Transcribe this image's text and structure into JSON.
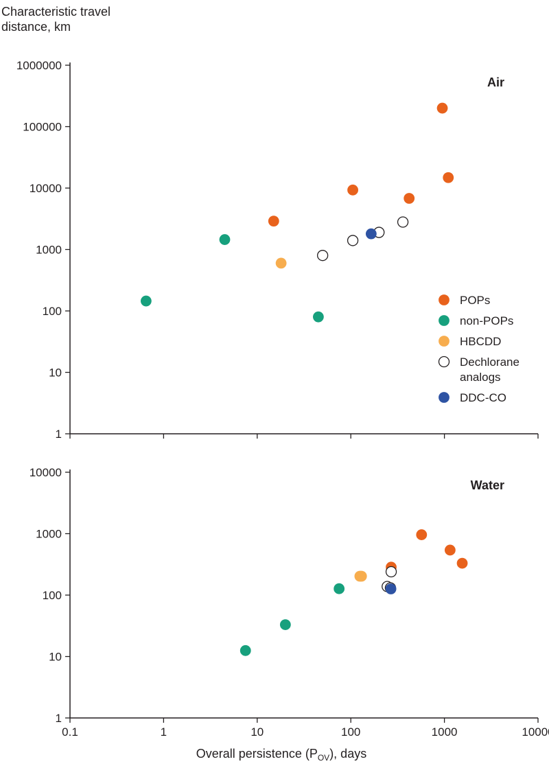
{
  "chart_data": {
    "type": "scatter",
    "ylabel_lines": [
      "Characteristic travel",
      "distance, km"
    ],
    "xlabel": "Overall persistence (P",
    "xlabel_sub": "OV",
    "xlabel_suffix": "), days",
    "x_scale": "log",
    "y_scale": "log",
    "xlim": [
      0.1,
      10000
    ],
    "xticks": [
      0.1,
      1,
      10,
      100,
      1000,
      10000
    ],
    "xtick_labels": [
      "0.1",
      "1",
      "10",
      "100",
      "1000",
      "10000"
    ],
    "colors": {
      "POPs": "#e8621c",
      "non-POPs": "#17a07d",
      "HBCDD": "#f7ad4e",
      "Dechlorane analogs": "#ffffff",
      "DDC-CO": "#2e53a3"
    },
    "legend": [
      {
        "name": "POPs",
        "lines": [
          "POPs"
        ]
      },
      {
        "name": "non-POPs",
        "lines": [
          "non-POPs"
        ]
      },
      {
        "name": "HBCDD",
        "lines": [
          "HBCDD"
        ]
      },
      {
        "name": "Dechlorane analogs",
        "lines": [
          "Dechlorane",
          "analogs"
        ]
      },
      {
        "name": "DDC-CO",
        "lines": [
          "DDC-CO"
        ]
      }
    ],
    "legend_location": "right of Air panel",
    "panels": [
      {
        "id": "air",
        "title": "Air",
        "ylim": [
          1,
          1000000
        ],
        "yticks": [
          1,
          10,
          100,
          1000,
          10000,
          100000,
          1000000
        ],
        "ytick_labels": [
          "1",
          "10",
          "100",
          "1000",
          "10000",
          "100000",
          "1000000"
        ],
        "series": [
          {
            "name": "POPs",
            "points": [
              [
                15,
                2900
              ],
              [
                105,
                9300
              ],
              [
                420,
                6800
              ],
              [
                950,
                200000
              ],
              [
                1100,
                14800
              ]
            ]
          },
          {
            "name": "non-POPs",
            "points": [
              [
                0.65,
                145
              ],
              [
                4.5,
                1450
              ],
              [
                45,
                80
              ]
            ]
          },
          {
            "name": "HBCDD",
            "points": [
              [
                18,
                600
              ]
            ]
          },
          {
            "name": "Dechlorane analogs",
            "points": [
              [
                50,
                800
              ],
              [
                105,
                1400
              ],
              [
                200,
                1900
              ],
              [
                360,
                2800
              ]
            ]
          },
          {
            "name": "DDC-CO",
            "points": [
              [
                165,
                1800
              ]
            ]
          }
        ]
      },
      {
        "id": "water",
        "title": "Water",
        "ylim": [
          1,
          10000
        ],
        "yticks": [
          1,
          10,
          100,
          1000,
          10000
        ],
        "ytick_labels": [
          "1",
          "10",
          "100",
          "1000",
          "10000"
        ],
        "series": [
          {
            "name": "POPs",
            "points": [
              [
                270,
                285
              ],
              [
                570,
                960
              ],
              [
                1150,
                540
              ],
              [
                1550,
                330
              ]
            ]
          },
          {
            "name": "non-POPs",
            "points": [
              [
                7.5,
                12.5
              ],
              [
                20,
                33
              ],
              [
                75,
                127
              ]
            ]
          },
          {
            "name": "HBCDD",
            "points": [
              [
                125,
                203
              ],
              [
                130,
                203
              ]
            ]
          },
          {
            "name": "Dechlorane analogs",
            "points": [
              [
                270,
                240
              ],
              [
                245,
                138
              ],
              [
                265,
                131
              ]
            ]
          },
          {
            "name": "DDC-CO",
            "points": [
              [
                268,
                126
              ]
            ]
          }
        ]
      }
    ]
  }
}
